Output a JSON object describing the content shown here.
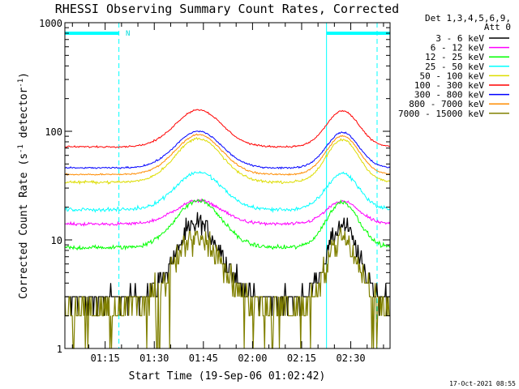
{
  "chart_data": {
    "type": "line",
    "title": "RHESSI Observing Summary Count Rates, Corrected",
    "xlabel": "Start Time (19-Sep-06 01:02:42)",
    "ylabel": "Corrected Count Rate (s",
    "ylabel_sup1": "-1",
    "ylabel_mid": " detector",
    "ylabel_sup2": "-1",
    "ylabel_end": ")",
    "y_scale": "log",
    "ylim": [
      1,
      1000
    ],
    "y_tick_labels": [
      "1",
      "10",
      "100",
      "1000"
    ],
    "x_start_min": 62.7,
    "x_end_min": 162.0,
    "x_tick_minutes": [
      75,
      90,
      105,
      120,
      135,
      150
    ],
    "x_tick_labels": [
      "01:15",
      "01:30",
      "01:45",
      "02:00",
      "02:15",
      "02:30"
    ],
    "legend_header": [
      "Det 1,3,4,5,6,9,",
      "Att 0"
    ],
    "legend_position": "right",
    "footer_timestamp": "17-Oct-2021 08:55",
    "annotation_N": "N",
    "night_bars": [
      [
        62.7,
        79.2
      ],
      [
        142.6,
        162.0
      ]
    ],
    "dashed_markers_min": [
      79.2,
      162.0
    ],
    "solid_markers_min": [
      142.6
    ],
    "orbit_peaks_min": [
      103.5,
      147.5
    ],
    "series": [
      {
        "name": "3 - 6 keV",
        "color": "#000000",
        "base": 2.8,
        "peak": 14,
        "noise": 0.22,
        "floor": 2,
        "quantized": true
      },
      {
        "name": "6 - 12 keV",
        "color": "#ff00ff",
        "base": 14,
        "peak": 23,
        "noise": 0.05
      },
      {
        "name": "12 - 25 keV",
        "color": "#00ff00",
        "base": 8.5,
        "peak": 23,
        "noise": 0.07
      },
      {
        "name": "25 - 50 keV",
        "color": "#00ffff",
        "base": 19,
        "peak": 42,
        "noise": 0.06
      },
      {
        "name": "50 - 100 keV",
        "color": "#dddd00",
        "base": 34,
        "peak": 86,
        "noise": 0.04
      },
      {
        "name": "100 - 300 keV",
        "color": "#ff0000",
        "base": 72,
        "peak": 158,
        "noise": 0.025
      },
      {
        "name": "300 - 800 keV",
        "color": "#0000ff",
        "base": 46,
        "peak": 100,
        "noise": 0.025
      },
      {
        "name": "800 - 7000 keV",
        "color": "#ff8c00",
        "base": 40,
        "peak": 93,
        "noise": 0.025
      },
      {
        "name": "7000 - 15000 keV",
        "color": "#808000",
        "base": 2.4,
        "peak": 11,
        "noise": 0.3,
        "floor": 1,
        "quantized": true
      }
    ]
  }
}
